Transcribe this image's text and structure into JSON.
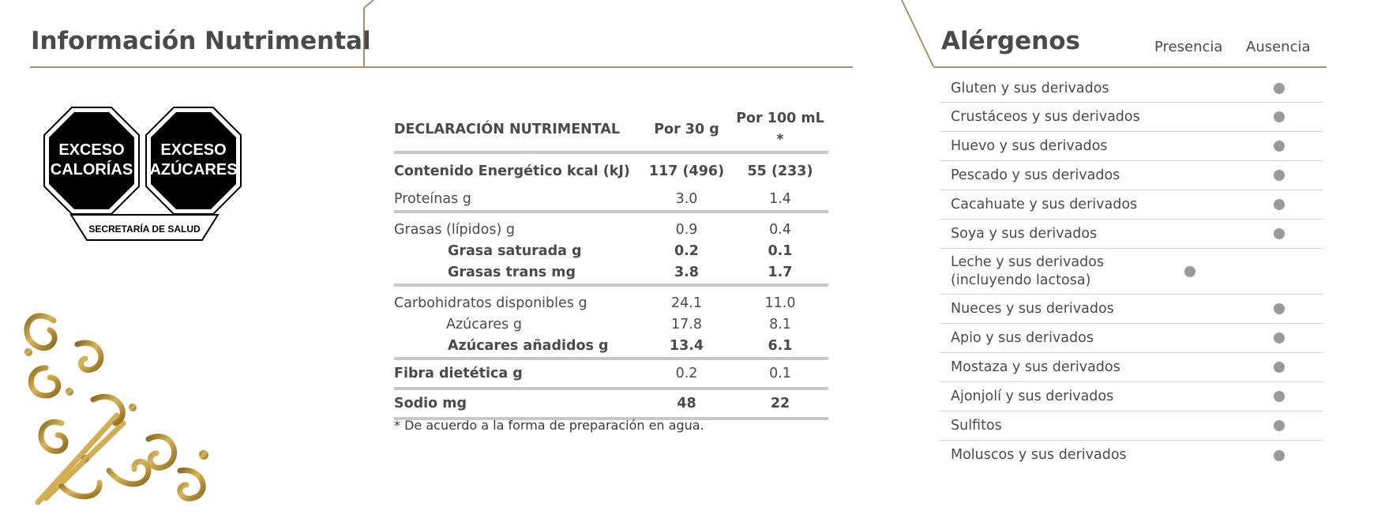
{
  "nutrition_title": "Información Nutrimental",
  "warning_seals": [
    {
      "line1": "EXCESO",
      "line2": "CALORÍAS"
    },
    {
      "line1": "EXCESO",
      "line2": "AZÚCARES"
    }
  ],
  "seal_authority": "SECRETARÍA DE SALUD",
  "table": {
    "headers": [
      "DECLARACIÓN NUTRIMENTAL",
      "Por 30 g",
      "Por 100 mL *"
    ],
    "rows": [
      {
        "label": "Contenido Energético kcal (kJ)",
        "per_30g": "117 (496)",
        "per_100ml": "55 (233)",
        "bold": true
      },
      {
        "label": "Proteínas g",
        "per_30g": "3.0",
        "per_100ml": "1.4"
      },
      {
        "label": "Grasas (lípidos) g",
        "per_30g": "0.9",
        "per_100ml": "0.4"
      },
      {
        "label": "Grasa saturada g",
        "per_30g": "0.2",
        "per_100ml": "0.1",
        "bold": true
      },
      {
        "label": "Grasas trans mg",
        "per_30g": "3.8",
        "per_100ml": "1.7",
        "bold": true
      },
      {
        "label": "Carbohidratos disponibles g",
        "per_30g": "24.1",
        "per_100ml": "11.0"
      },
      {
        "label": "Azúcares g",
        "per_30g": "17.8",
        "per_100ml": "8.1"
      },
      {
        "label": "Azúcares añadidos g",
        "per_30g": "13.4",
        "per_100ml": "6.1",
        "bold": true
      },
      {
        "label": "Fibra dietética g",
        "per_30g": "0.2",
        "per_100ml": "0.1"
      },
      {
        "label": "Sodio mg",
        "per_30g": "48",
        "per_100ml": "22"
      }
    ]
  },
  "footnote": "* De acuerdo a la forma de preparación en agua.",
  "allergens": {
    "title": "Alérgenos",
    "col_presence": "Presencia",
    "col_absence": "Ausencia",
    "items": [
      {
        "name": "Gluten y sus derivados",
        "marked": "absence"
      },
      {
        "name": "Crustáceos y sus derivados",
        "marked": "absence"
      },
      {
        "name": "Huevo y sus derivados",
        "marked": "absence"
      },
      {
        "name": "Pescado y sus derivados",
        "marked": "absence"
      },
      {
        "name": "Cacahuate y sus derivados",
        "marked": "absence"
      },
      {
        "name": "Soya y sus derivados",
        "marked": "absence"
      },
      {
        "name": "Leche y sus derivados\n(incluyendo lactosa)",
        "marked": "presence"
      },
      {
        "name": "Nueces y sus derivados",
        "marked": "absence"
      },
      {
        "name": "Apio y sus derivados",
        "marked": "absence"
      },
      {
        "name": "Mostaza y sus derivados",
        "marked": "absence"
      },
      {
        "name": "Ajonjolí y sus derivados",
        "marked": "absence"
      },
      {
        "name": "Sulfitos",
        "marked": "absence"
      },
      {
        "name": "Moluscos y sus derivados",
        "marked": "absence"
      }
    ]
  },
  "colors": {
    "frame_line": "#b08d6a",
    "seal_fill": "#000000",
    "dot": "#9a9a9a",
    "ornament_gold": "#b8912e"
  }
}
